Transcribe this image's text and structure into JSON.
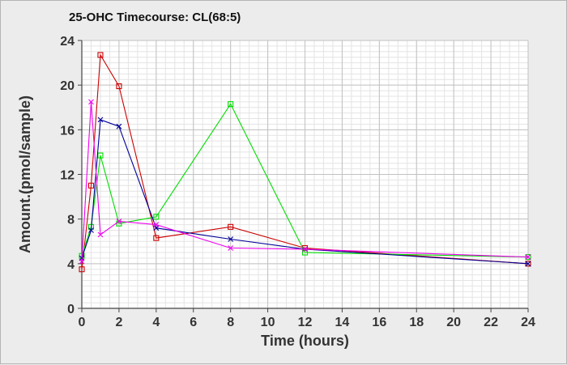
{
  "chart_data": {
    "type": "line",
    "title": "25-OHC Timecourse: CL(68:5)",
    "xlabel": "Time (hours)",
    "ylabel": "Amount.(pmol/sample)",
    "xlim": [
      0,
      24
    ],
    "ylim": [
      0,
      24
    ],
    "xticks": [
      0,
      2,
      4,
      6,
      8,
      10,
      12,
      14,
      16,
      18,
      20,
      22,
      24
    ],
    "yticks": [
      0,
      4,
      8,
      12,
      16,
      20,
      24
    ],
    "grid": true,
    "series": [
      {
        "color": "#cc0000",
        "marker": "square",
        "x": [
          0,
          0.5,
          1,
          2,
          4,
          8,
          12,
          24
        ],
        "y": [
          3.5,
          11.0,
          22.7,
          19.9,
          6.3,
          7.3,
          5.4,
          4.0
        ]
      },
      {
        "color": "#00dd00",
        "marker": "square",
        "x": [
          0,
          0.5,
          1,
          2,
          4,
          8,
          12,
          24
        ],
        "y": [
          4.7,
          7.3,
          13.7,
          7.6,
          8.2,
          18.3,
          5.0,
          4.6
        ]
      },
      {
        "color": "#000099",
        "marker": "x",
        "x": [
          0,
          0.5,
          1,
          2,
          4,
          8,
          12,
          24
        ],
        "y": [
          4.5,
          7.0,
          16.9,
          16.3,
          7.2,
          6.2,
          5.3,
          4.0
        ]
      },
      {
        "color": "#ee00ee",
        "marker": "x",
        "x": [
          0,
          0.5,
          1,
          2,
          4,
          8,
          12,
          24
        ],
        "y": [
          4.2,
          18.5,
          6.6,
          7.8,
          7.5,
          5.4,
          5.3,
          4.6
        ]
      }
    ]
  }
}
